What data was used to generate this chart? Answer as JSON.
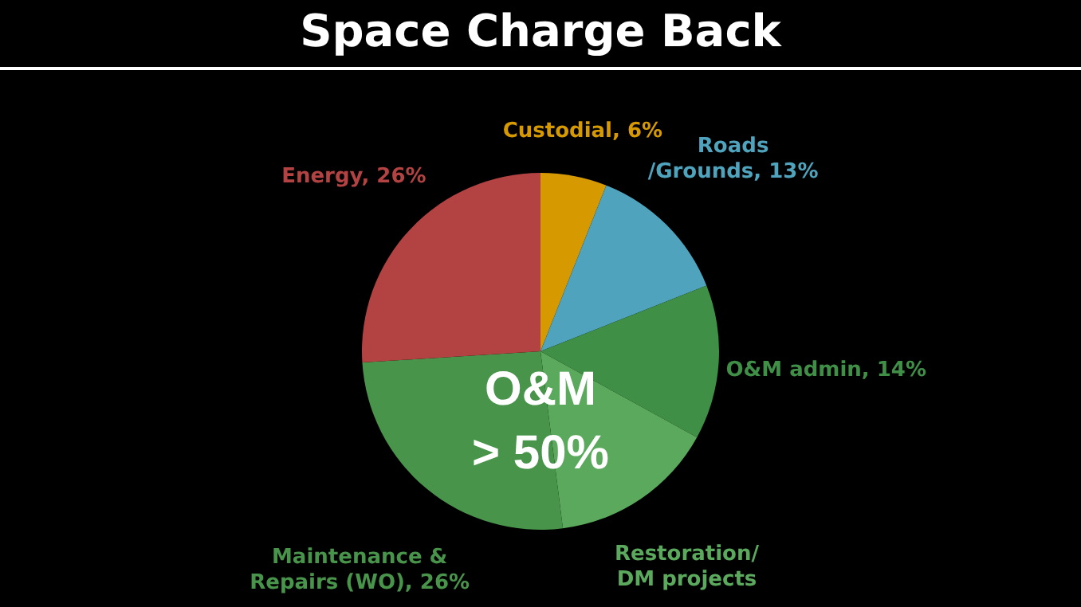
{
  "chart_data": {
    "type": "pie",
    "title": "Space Charge Back",
    "categories": [
      "Custodial",
      "Roads /Grounds",
      "O&M admin",
      "Restoration/ DM projects",
      "Maintenance & Repairs (WO)",
      "Energy"
    ],
    "values": [
      6,
      13,
      14,
      15,
      26,
      26
    ],
    "value_labels": [
      "6%",
      "13%",
      "14%",
      null,
      "26%",
      "26%"
    ],
    "colors": [
      "#d69a00",
      "#4fa3bd",
      "#3f8f47",
      "#5aa95c",
      "#48944b",
      "#b34343"
    ],
    "annotations": [
      "O&M\n> 50%"
    ]
  }
}
